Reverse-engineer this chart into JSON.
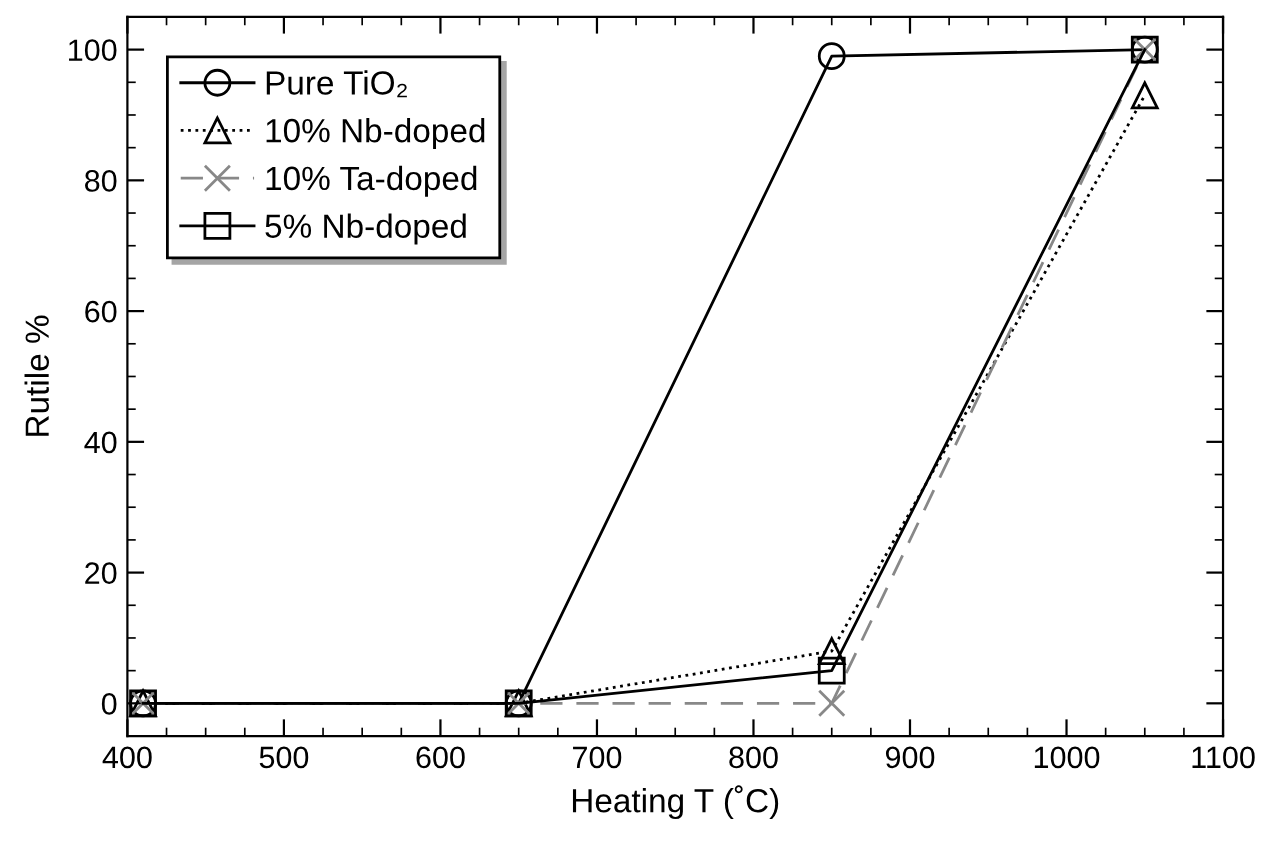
{
  "chart_data": {
    "type": "line",
    "xlabel": "Heating T (˚C)",
    "ylabel": "Rutile %",
    "x": [
      410,
      650,
      850,
      1050
    ],
    "series": [
      {
        "name": "Pure TiO₂",
        "color": "#000000",
        "marker": "circle",
        "line_style": "solid",
        "values": [
          0,
          0,
          99,
          100
        ]
      },
      {
        "name": "10% Nb-doped",
        "color": "#000000",
        "marker": "triangle",
        "line_style": "dotted",
        "values": [
          0,
          0,
          8,
          93
        ]
      },
      {
        "name": "10% Ta-doped",
        "color": "#888888",
        "marker": "cross",
        "line_style": "dashed",
        "values": [
          0,
          0,
          0,
          100
        ]
      },
      {
        "name": "5% Nb-doped",
        "color": "#000000",
        "marker": "square",
        "line_style": "solid",
        "values": [
          0,
          0,
          5,
          100
        ]
      }
    ],
    "xlim": [
      400,
      1100
    ],
    "xticks": [
      400,
      500,
      600,
      700,
      800,
      900,
      1000,
      1100
    ],
    "ylim": [
      -5,
      105
    ],
    "yticks": [
      0,
      20,
      40,
      60,
      80,
      100
    ],
    "grid": false,
    "legend": "top left"
  }
}
